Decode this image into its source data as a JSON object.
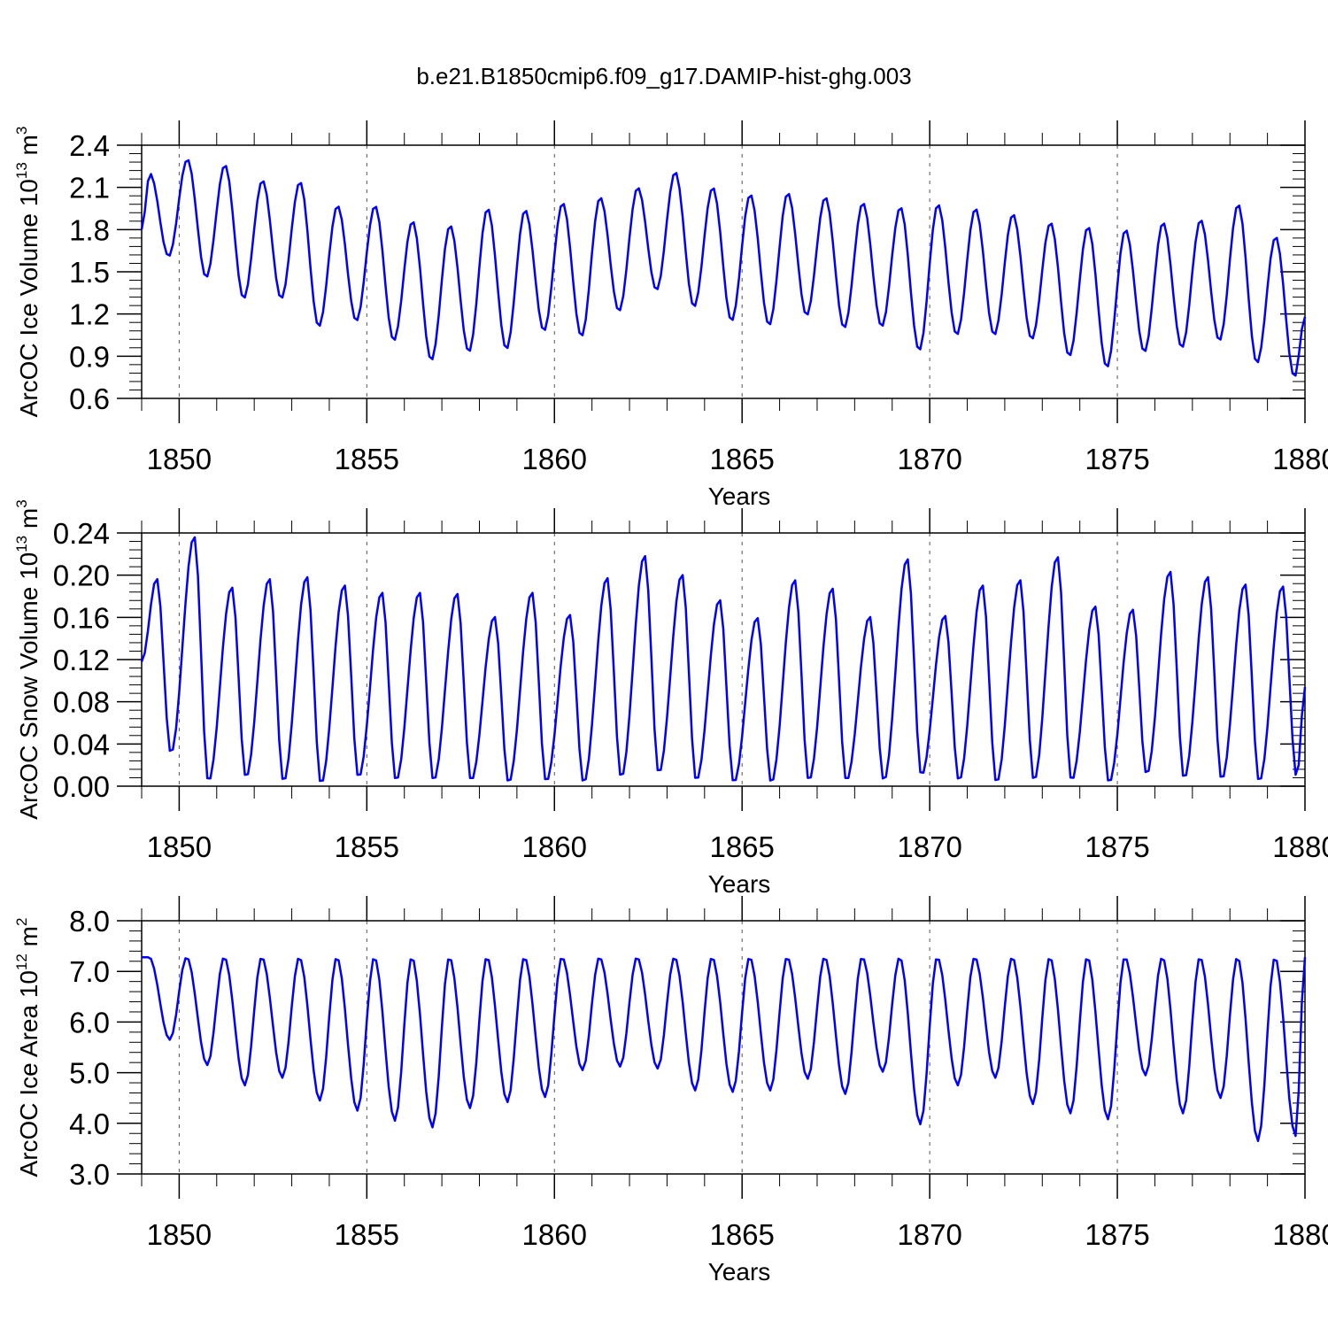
{
  "figure_title": "b.e21.B1850cmip6.f09_g17.DAMIP-hist-ghg.003",
  "colors": {
    "line": "#0000ff",
    "axis": "#000000",
    "grid": "#555555"
  },
  "chart_data": [
    {
      "type": "line",
      "ylabel": {
        "text": "ArcOC Ice Volume 10",
        "sup1": "13",
        "mid": " m",
        "sup2": "3"
      },
      "xlabel": "Years",
      "xlim": [
        1849.0,
        1880.0
      ],
      "ylim": [
        0.6,
        2.4
      ],
      "yticks": [
        0.6,
        0.9,
        1.2,
        1.5,
        1.8,
        2.1,
        2.4
      ],
      "ytick_labels": [
        "0.6",
        "0.9",
        "1.2",
        "1.5",
        "1.8",
        "2.1",
        "2.4"
      ],
      "xticks": [
        1850,
        1855,
        1860,
        1865,
        1870,
        1875,
        1880
      ],
      "xtick_labels": [
        "1850",
        "1855",
        "1860",
        "1865",
        "1870",
        "1875",
        "1880"
      ],
      "year_max": [
        2.2,
        2.3,
        2.26,
        2.15,
        2.14,
        1.97,
        1.97,
        1.86,
        1.83,
        1.95,
        1.94,
        1.99,
        2.03,
        2.1,
        2.21,
        2.1,
        2.05,
        2.06,
        2.03,
        1.99,
        1.96,
        1.98,
        1.95,
        1.91,
        1.85,
        1.82,
        1.8,
        1.85,
        1.87,
        1.98,
        1.75
      ],
      "year_min": [
        1.61,
        1.46,
        1.31,
        1.31,
        1.11,
        1.15,
        1.01,
        0.87,
        0.93,
        0.95,
        1.08,
        1.04,
        1.22,
        1.37,
        1.25,
        1.15,
        1.12,
        1.19,
        1.1,
        1.11,
        0.94,
        1.05,
        1.05,
        1.02,
        0.9,
        0.82,
        0.93,
        0.96,
        1.01,
        0.85,
        0.75
      ],
      "start_value": 1.8,
      "end_value": 1.18,
      "phase_max": 0.22,
      "phase_min": 0.72,
      "series": [
        {
          "name": "ArcOC Ice Volume",
          "color": "#0000ff"
        }
      ]
    },
    {
      "type": "line",
      "ylabel": {
        "text": "ArcOC Snow Volume 10",
        "sup1": "13",
        "mid": " m",
        "sup2": "3"
      },
      "xlabel": "Years",
      "xlim": [
        1849.0,
        1880.0
      ],
      "ylim": [
        0.0,
        0.24
      ],
      "yticks": [
        0.0,
        0.04,
        0.08,
        0.12,
        0.16,
        0.2,
        0.24
      ],
      "ytick_labels": [
        "0.00",
        "0.04",
        "0.08",
        "0.12",
        "0.16",
        "0.20",
        "0.24"
      ],
      "xticks": [
        1850,
        1855,
        1860,
        1865,
        1870,
        1875,
        1880
      ],
      "xtick_labels": [
        "1850",
        "1855",
        "1860",
        "1865",
        "1870",
        "1875",
        "1880"
      ],
      "year_max": [
        0.197,
        0.237,
        0.189,
        0.197,
        0.199,
        0.191,
        0.184,
        0.184,
        0.183,
        0.161,
        0.184,
        0.163,
        0.198,
        0.219,
        0.201,
        0.177,
        0.16,
        0.196,
        0.188,
        0.161,
        0.216,
        0.162,
        0.191,
        0.196,
        0.218,
        0.171,
        0.168,
        0.204,
        0.199,
        0.192,
        0.19
      ],
      "year_min": [
        0.031,
        0.004,
        0.008,
        0.004,
        0.002,
        0.008,
        0.005,
        0.005,
        0.005,
        0.003,
        0.004,
        0.003,
        0.008,
        0.012,
        0.005,
        0.003,
        0.003,
        0.005,
        0.005,
        0.005,
        0.01,
        0.005,
        0.003,
        0.005,
        0.005,
        0.003,
        0.011,
        0.007,
        0.006,
        0.004,
        0.008
      ],
      "start_value": 0.118,
      "end_value": 0.094,
      "phase_max": 0.4,
      "phase_min": 0.78,
      "series": [
        {
          "name": "ArcOC Snow Volume",
          "color": "#0000ff"
        }
      ]
    },
    {
      "type": "line",
      "ylabel": {
        "text": "ArcOC Ice Area 10",
        "sup1": "12",
        "mid": " m",
        "sup2": "2"
      },
      "xlabel": "Years",
      "xlim": [
        1849.0,
        1880.0
      ],
      "ylim": [
        3.0,
        8.0
      ],
      "yticks": [
        3.0,
        4.0,
        5.0,
        6.0,
        7.0,
        8.0
      ],
      "ytick_labels": [
        "3.0",
        "4.0",
        "5.0",
        "6.0",
        "7.0",
        "8.0"
      ],
      "xticks": [
        1850,
        1855,
        1860,
        1865,
        1870,
        1875,
        1880
      ],
      "xtick_labels": [
        "1850",
        "1855",
        "1860",
        "1865",
        "1870",
        "1875",
        "1880"
      ],
      "year_max": [
        7.28,
        7.28,
        7.28,
        7.28,
        7.28,
        7.28,
        7.28,
        7.28,
        7.28,
        7.28,
        7.28,
        7.28,
        7.28,
        7.28,
        7.28,
        7.28,
        7.28,
        7.28,
        7.28,
        7.28,
        7.28,
        7.28,
        7.28,
        7.28,
        7.28,
        7.28,
        7.28,
        7.28,
        7.28,
        7.28,
        7.28
      ],
      "year_min": [
        5.65,
        5.15,
        4.75,
        4.9,
        4.45,
        4.25,
        4.05,
        3.92,
        4.3,
        4.42,
        4.52,
        5.05,
        5.12,
        5.08,
        4.65,
        4.62,
        4.65,
        4.88,
        4.58,
        5.02,
        3.98,
        4.75,
        4.9,
        4.38,
        4.2,
        4.08,
        4.95,
        4.2,
        4.5,
        3.65,
        3.75
      ],
      "start_value": 7.28,
      "end_value": 7.28,
      "phase_max": 0.2,
      "phase_min": 0.75,
      "series": [
        {
          "name": "ArcOC Ice Area",
          "color": "#0000ff"
        }
      ]
    }
  ]
}
